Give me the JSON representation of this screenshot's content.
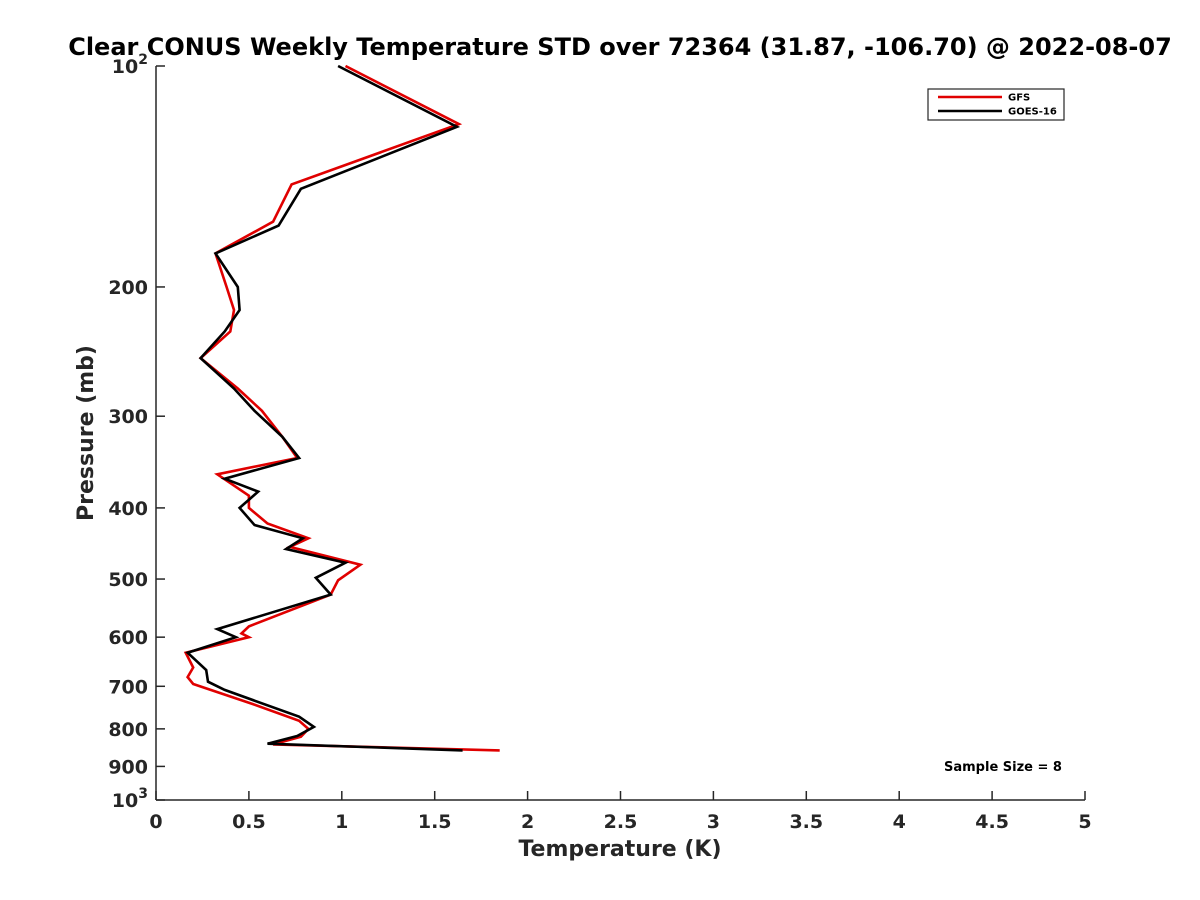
{
  "chart_data": {
    "type": "line",
    "title": "Clear CONUS Weekly Temperature STD over 72364 (31.87, -106.70) @ 2022-08-07",
    "xlabel": "Temperature (K)",
    "ylabel": "Pressure (mb)",
    "xlim": [
      0,
      5
    ],
    "ylim": [
      100,
      1000
    ],
    "y_scale": "log",
    "y_reversed": true,
    "grid": false,
    "legend_position": "top-right",
    "x_ticks": [
      {
        "value": 0,
        "label": "0"
      },
      {
        "value": 0.5,
        "label": "0.5"
      },
      {
        "value": 1,
        "label": "1"
      },
      {
        "value": 1.5,
        "label": "1.5"
      },
      {
        "value": 2,
        "label": "2"
      },
      {
        "value": 2.5,
        "label": "2.5"
      },
      {
        "value": 3,
        "label": "3"
      },
      {
        "value": 3.5,
        "label": "3.5"
      },
      {
        "value": 4,
        "label": "4"
      },
      {
        "value": 4.5,
        "label": "4.5"
      },
      {
        "value": 5,
        "label": "5"
      }
    ],
    "y_ticks": [
      {
        "value": 100,
        "label_base": "10",
        "label_exp": "2"
      },
      {
        "value": 200,
        "label_base": "200",
        "label_exp": ""
      },
      {
        "value": 300,
        "label_base": "300",
        "label_exp": ""
      },
      {
        "value": 400,
        "label_base": "400",
        "label_exp": ""
      },
      {
        "value": 500,
        "label_base": "500",
        "label_exp": ""
      },
      {
        "value": 600,
        "label_base": "600",
        "label_exp": ""
      },
      {
        "value": 700,
        "label_base": "700",
        "label_exp": ""
      },
      {
        "value": 800,
        "label_base": "800",
        "label_exp": ""
      },
      {
        "value": 900,
        "label_base": "900",
        "label_exp": ""
      },
      {
        "value": 1000,
        "label_base": "10",
        "label_exp": "3"
      }
    ],
    "series": [
      {
        "name": "GFS",
        "color": "#e00000",
        "points": [
          [
            1.02,
            100
          ],
          [
            1.63,
            120
          ],
          [
            0.73,
            145
          ],
          [
            0.63,
            163
          ],
          [
            0.32,
            180
          ],
          [
            0.38,
            200
          ],
          [
            0.42,
            215
          ],
          [
            0.4,
            230
          ],
          [
            0.24,
            250
          ],
          [
            0.44,
            275
          ],
          [
            0.57,
            295
          ],
          [
            0.68,
            320
          ],
          [
            0.76,
            342
          ],
          [
            0.33,
            360
          ],
          [
            0.5,
            385
          ],
          [
            0.5,
            400
          ],
          [
            0.6,
            420
          ],
          [
            0.82,
            440
          ],
          [
            0.72,
            452
          ],
          [
            1.1,
            478
          ],
          [
            0.98,
            502
          ],
          [
            0.94,
            525
          ],
          [
            0.5,
            580
          ],
          [
            0.46,
            593
          ],
          [
            0.5,
            600
          ],
          [
            0.16,
            630
          ],
          [
            0.2,
            660
          ],
          [
            0.17,
            680
          ],
          [
            0.2,
            695
          ],
          [
            0.52,
            740
          ],
          [
            0.77,
            780
          ],
          [
            0.82,
            800
          ],
          [
            0.78,
            820
          ],
          [
            0.63,
            840
          ],
          [
            1.85,
            856
          ]
        ]
      },
      {
        "name": "GOES-16",
        "color": "#000000",
        "points": [
          [
            0.98,
            100
          ],
          [
            1.62,
            121
          ],
          [
            0.78,
            147
          ],
          [
            0.66,
            165
          ],
          [
            0.32,
            180
          ],
          [
            0.44,
            200
          ],
          [
            0.45,
            215
          ],
          [
            0.37,
            230
          ],
          [
            0.24,
            250
          ],
          [
            0.42,
            275
          ],
          [
            0.53,
            295
          ],
          [
            0.68,
            320
          ],
          [
            0.77,
            342
          ],
          [
            0.37,
            365
          ],
          [
            0.55,
            380
          ],
          [
            0.45,
            400
          ],
          [
            0.53,
            422
          ],
          [
            0.79,
            440
          ],
          [
            0.7,
            455
          ],
          [
            1.02,
            475
          ],
          [
            0.86,
            498
          ],
          [
            0.94,
            525
          ],
          [
            0.33,
            585
          ],
          [
            0.43,
            600
          ],
          [
            0.17,
            630
          ],
          [
            0.27,
            665
          ],
          [
            0.28,
            690
          ],
          [
            0.37,
            708
          ],
          [
            0.77,
            770
          ],
          [
            0.85,
            795
          ],
          [
            0.76,
            818
          ],
          [
            0.6,
            838
          ],
          [
            1.65,
            856
          ]
        ]
      }
    ],
    "annotation": "Sample Size = 8"
  }
}
